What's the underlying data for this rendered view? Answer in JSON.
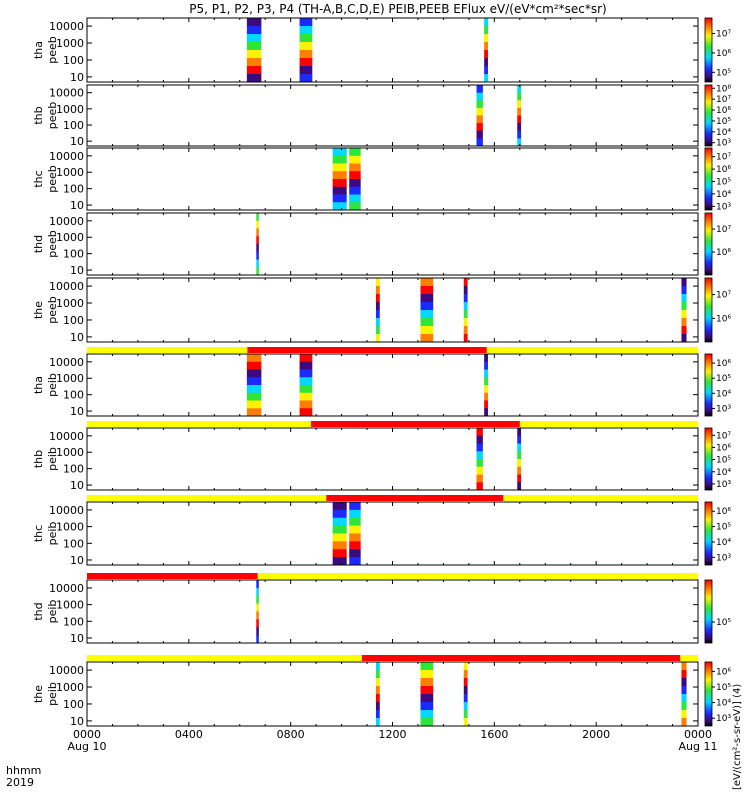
{
  "chart_data": {
    "type": "heatmap",
    "title": "P5, P1, P2, P3, P4 (TH-A,B,C,D,E) PEIB,PEEB EFlux eV/(eV*cm²*sec*sr)",
    "x_ticks": [
      "0000",
      "0400",
      "0800",
      "1200",
      "1600",
      "2000",
      "0000"
    ],
    "x_tick_hours": [
      0,
      4,
      8,
      12,
      16,
      20,
      24
    ],
    "x_date_labels": [
      {
        "hour": 0,
        "label": "Aug 10"
      },
      {
        "hour": 24,
        "label": "Aug 11"
      }
    ],
    "x_axis_label": "hhmm",
    "x_year_label": "2019",
    "xlim_hours": [
      0,
      24
    ],
    "y_scale": "log",
    "y_ticks": [
      "10",
      "100",
      "1000",
      "10000"
    ],
    "ylim": [
      5,
      30000
    ],
    "colorbar_label": "[eV/(cm²-s-sr-eV)]",
    "colorbar_label_ion": "[eV/(cm²-s-sr-eV)] (4)",
    "panels": [
      {
        "label1": "tha",
        "label2": "peeb",
        "cbar_ticks": [
          "10⁷",
          "10⁶",
          "10⁵"
        ],
        "cbar_exps": [
          7,
          6,
          5
        ],
        "cbar_range": [
          4.5,
          7.8
        ],
        "activity": [
          [
            6.28,
            6.85
          ],
          [
            8.35,
            8.85
          ],
          [
            15.6,
            15.75
          ]
        ],
        "mode_bar": null
      },
      {
        "label1": "thb",
        "label2": "peeb",
        "cbar_ticks": [
          "10⁸",
          "10⁷",
          "10⁶",
          "10⁵",
          "10⁴",
          "10³"
        ],
        "cbar_exps": [
          8,
          7,
          6,
          5,
          4,
          3
        ],
        "cbar_range": [
          2.7,
          8.3
        ],
        "activity": [
          [
            15.3,
            15.55
          ],
          [
            16.9,
            17.05
          ]
        ],
        "mode_bar": null
      },
      {
        "label1": "thc",
        "label2": "peeb",
        "cbar_ticks": [
          "10⁷",
          "10⁶",
          "10⁵",
          "10⁴",
          "10³"
        ],
        "cbar_exps": [
          7,
          6,
          5,
          4,
          3
        ],
        "cbar_range": [
          2.7,
          7.7
        ],
        "activity": [
          [
            9.65,
            10.2
          ],
          [
            10.3,
            10.75
          ]
        ],
        "mode_bar": null
      },
      {
        "label1": "thd",
        "label2": "peeb",
        "cbar_ticks": [
          "10⁷",
          "10⁶"
        ],
        "cbar_exps": [
          7,
          6
        ],
        "cbar_range": [
          5.0,
          7.7
        ],
        "activity": [
          [
            6.65,
            6.75
          ]
        ],
        "mode_bar": null
      },
      {
        "label1": "the",
        "label2": "peeb",
        "cbar_ticks": [
          "10⁷",
          "10⁶"
        ],
        "cbar_exps": [
          7,
          6
        ],
        "cbar_range": [
          5.0,
          7.7
        ],
        "activity": [
          [
            11.35,
            11.5
          ],
          [
            13.1,
            13.6
          ],
          [
            14.8,
            14.95
          ],
          [
            23.35,
            23.55
          ]
        ],
        "mode_bar": null
      },
      {
        "label1": "tha",
        "label2": "peib",
        "cbar_ticks": [
          "10⁶",
          "10⁵",
          "10⁴",
          "10³"
        ],
        "cbar_exps": [
          6,
          5,
          4,
          3
        ],
        "cbar_range": [
          2.5,
          6.6
        ],
        "activity": [
          [
            6.28,
            6.85
          ],
          [
            8.35,
            8.85
          ],
          [
            15.6,
            15.75
          ]
        ],
        "mode_bar": {
          "red": [
            6.3,
            15.7
          ]
        }
      },
      {
        "label1": "thb",
        "label2": "peib",
        "cbar_ticks": [
          "10⁷",
          "10⁶",
          "10⁵",
          "10⁴",
          "10³"
        ],
        "cbar_exps": [
          7,
          6,
          5,
          4,
          3
        ],
        "cbar_range": [
          2.5,
          7.6
        ],
        "activity": [
          [
            15.3,
            15.55
          ],
          [
            16.9,
            17.05
          ]
        ],
        "mode_bar": {
          "red": [
            8.8,
            17.0
          ]
        }
      },
      {
        "label1": "thc",
        "label2": "peib",
        "cbar_ticks": [
          "10⁶",
          "10⁵",
          "10⁴",
          "10³"
        ],
        "cbar_exps": [
          6,
          5,
          4,
          3
        ],
        "cbar_range": [
          2.5,
          6.6
        ],
        "activity": [
          [
            9.65,
            10.2
          ],
          [
            10.3,
            10.75
          ]
        ],
        "mode_bar": {
          "red": [
            9.4,
            16.35
          ]
        }
      },
      {
        "label1": "thd",
        "label2": "peib",
        "cbar_ticks": [
          "10⁵"
        ],
        "cbar_exps": [
          5
        ],
        "cbar_range": [
          4.2,
          6.6
        ],
        "activity": [
          [
            6.65,
            6.75
          ]
        ],
        "mode_bar": {
          "red": [
            0,
            6.7
          ]
        }
      },
      {
        "label1": "the",
        "label2": "peib",
        "cbar_ticks": [
          "10⁶",
          "10⁵",
          "10⁴",
          "10³"
        ],
        "cbar_exps": [
          6,
          5,
          4,
          3
        ],
        "cbar_range": [
          2.5,
          6.6
        ],
        "activity": [
          [
            11.35,
            11.5
          ],
          [
            13.1,
            13.6
          ],
          [
            14.8,
            14.95
          ],
          [
            23.35,
            23.55
          ]
        ],
        "mode_bar": {
          "red": [
            10.8,
            23.3
          ]
        }
      }
    ]
  }
}
